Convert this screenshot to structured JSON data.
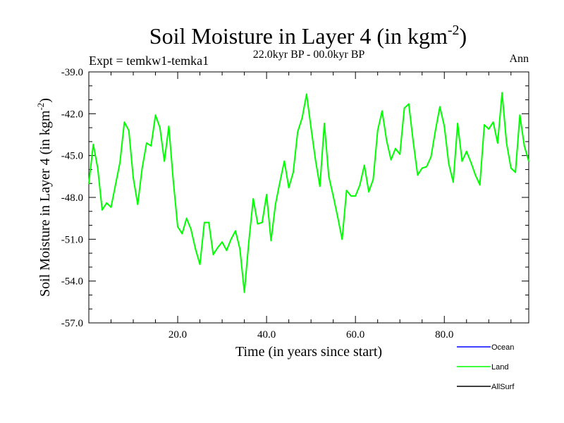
{
  "chart_data": {
    "type": "line",
    "title": "Soil Moisture in Layer 4 (in kgm",
    "title_superscript": "-2",
    "title_close": ")",
    "subtitle_left": "Expt = temkw1-temka1",
    "subtitle_center": "22.0kyr BP - 00.0kyr BP",
    "subtitle_right": "Ann",
    "xlabel": "Time (in years since start)",
    "ylabel": "Soil Moisture in Layer 4 (in kgm",
    "ylabel_superscript": "-2",
    "ylabel_close": ")",
    "xlim": [
      0,
      99
    ],
    "ylim": [
      -57.0,
      -39.0
    ],
    "x_ticks": [
      20,
      40,
      60,
      80
    ],
    "x_tick_labels": [
      "20.0",
      "40.0",
      "60.0",
      "80.0"
    ],
    "y_ticks": [
      -39,
      -42,
      -45,
      -48,
      -51,
      -54,
      -57
    ],
    "y_tick_labels": [
      "-39.0",
      "-42.0",
      "-45.0",
      "-48.0",
      "-51.0",
      "-54.0",
      "-57.0"
    ],
    "legend": [
      {
        "name": "Ocean",
        "color": "#0000ff"
      },
      {
        "name": "Land",
        "color": "#00ff00"
      },
      {
        "name": "AllSurf",
        "color": "#000000"
      }
    ],
    "series": [
      {
        "name": "Land",
        "color": "#00ff00",
        "x": [
          0,
          1,
          2,
          3,
          4,
          5,
          6,
          7,
          8,
          9,
          10,
          11,
          12,
          13,
          14,
          15,
          16,
          17,
          18,
          19,
          20,
          21,
          22,
          23,
          24,
          25,
          26,
          27,
          28,
          29,
          30,
          31,
          32,
          33,
          34,
          35,
          36,
          37,
          38,
          39,
          40,
          41,
          42,
          43,
          44,
          45,
          46,
          47,
          48,
          49,
          50,
          51,
          52,
          53,
          54,
          55,
          56,
          57,
          58,
          59,
          60,
          61,
          62,
          63,
          64,
          65,
          66,
          67,
          68,
          69,
          70,
          71,
          72,
          73,
          74,
          75,
          76,
          77,
          78,
          79,
          80,
          81,
          82,
          83,
          84,
          85,
          86,
          87,
          88,
          89,
          90,
          91,
          92,
          93,
          94,
          95,
          96,
          97,
          98,
          99
        ],
        "values": [
          -47.0,
          -44.2,
          -45.9,
          -48.9,
          -48.4,
          -48.7,
          -47.1,
          -45.5,
          -42.6,
          -43.2,
          -46.6,
          -48.5,
          -45.9,
          -44.1,
          -44.3,
          -42.1,
          -43.0,
          -45.4,
          -42.9,
          -46.8,
          -50.1,
          -50.6,
          -49.5,
          -50.3,
          -51.7,
          -52.8,
          -49.8,
          -49.8,
          -52.1,
          -51.6,
          -51.2,
          -51.8,
          -51.0,
          -50.4,
          -51.7,
          -54.8,
          -51.2,
          -48.1,
          -49.9,
          -49.8,
          -47.8,
          -51.1,
          -48.5,
          -46.9,
          -45.4,
          -47.3,
          -46.2,
          -43.3,
          -42.3,
          -40.6,
          -43.0,
          -45.3,
          -47.2,
          -42.7,
          -46.5,
          -47.9,
          -49.4,
          -51.0,
          -47.5,
          -47.9,
          -47.9,
          -47.1,
          -45.7,
          -47.6,
          -46.7,
          -43.2,
          -41.8,
          -43.9,
          -45.3,
          -44.5,
          -44.9,
          -41.6,
          -41.3,
          -44.0,
          -46.4,
          -45.9,
          -45.8,
          -45.1,
          -43.2,
          -41.5,
          -42.9,
          -45.6,
          -46.9,
          -42.7,
          -45.4,
          -44.7,
          -45.5,
          -46.4,
          -47.1,
          -42.8,
          -43.1,
          -42.6,
          -44.1,
          -40.5,
          -44.1,
          -45.9,
          -46.2,
          -42.1,
          -44.3,
          -45.4
        ]
      }
    ]
  }
}
